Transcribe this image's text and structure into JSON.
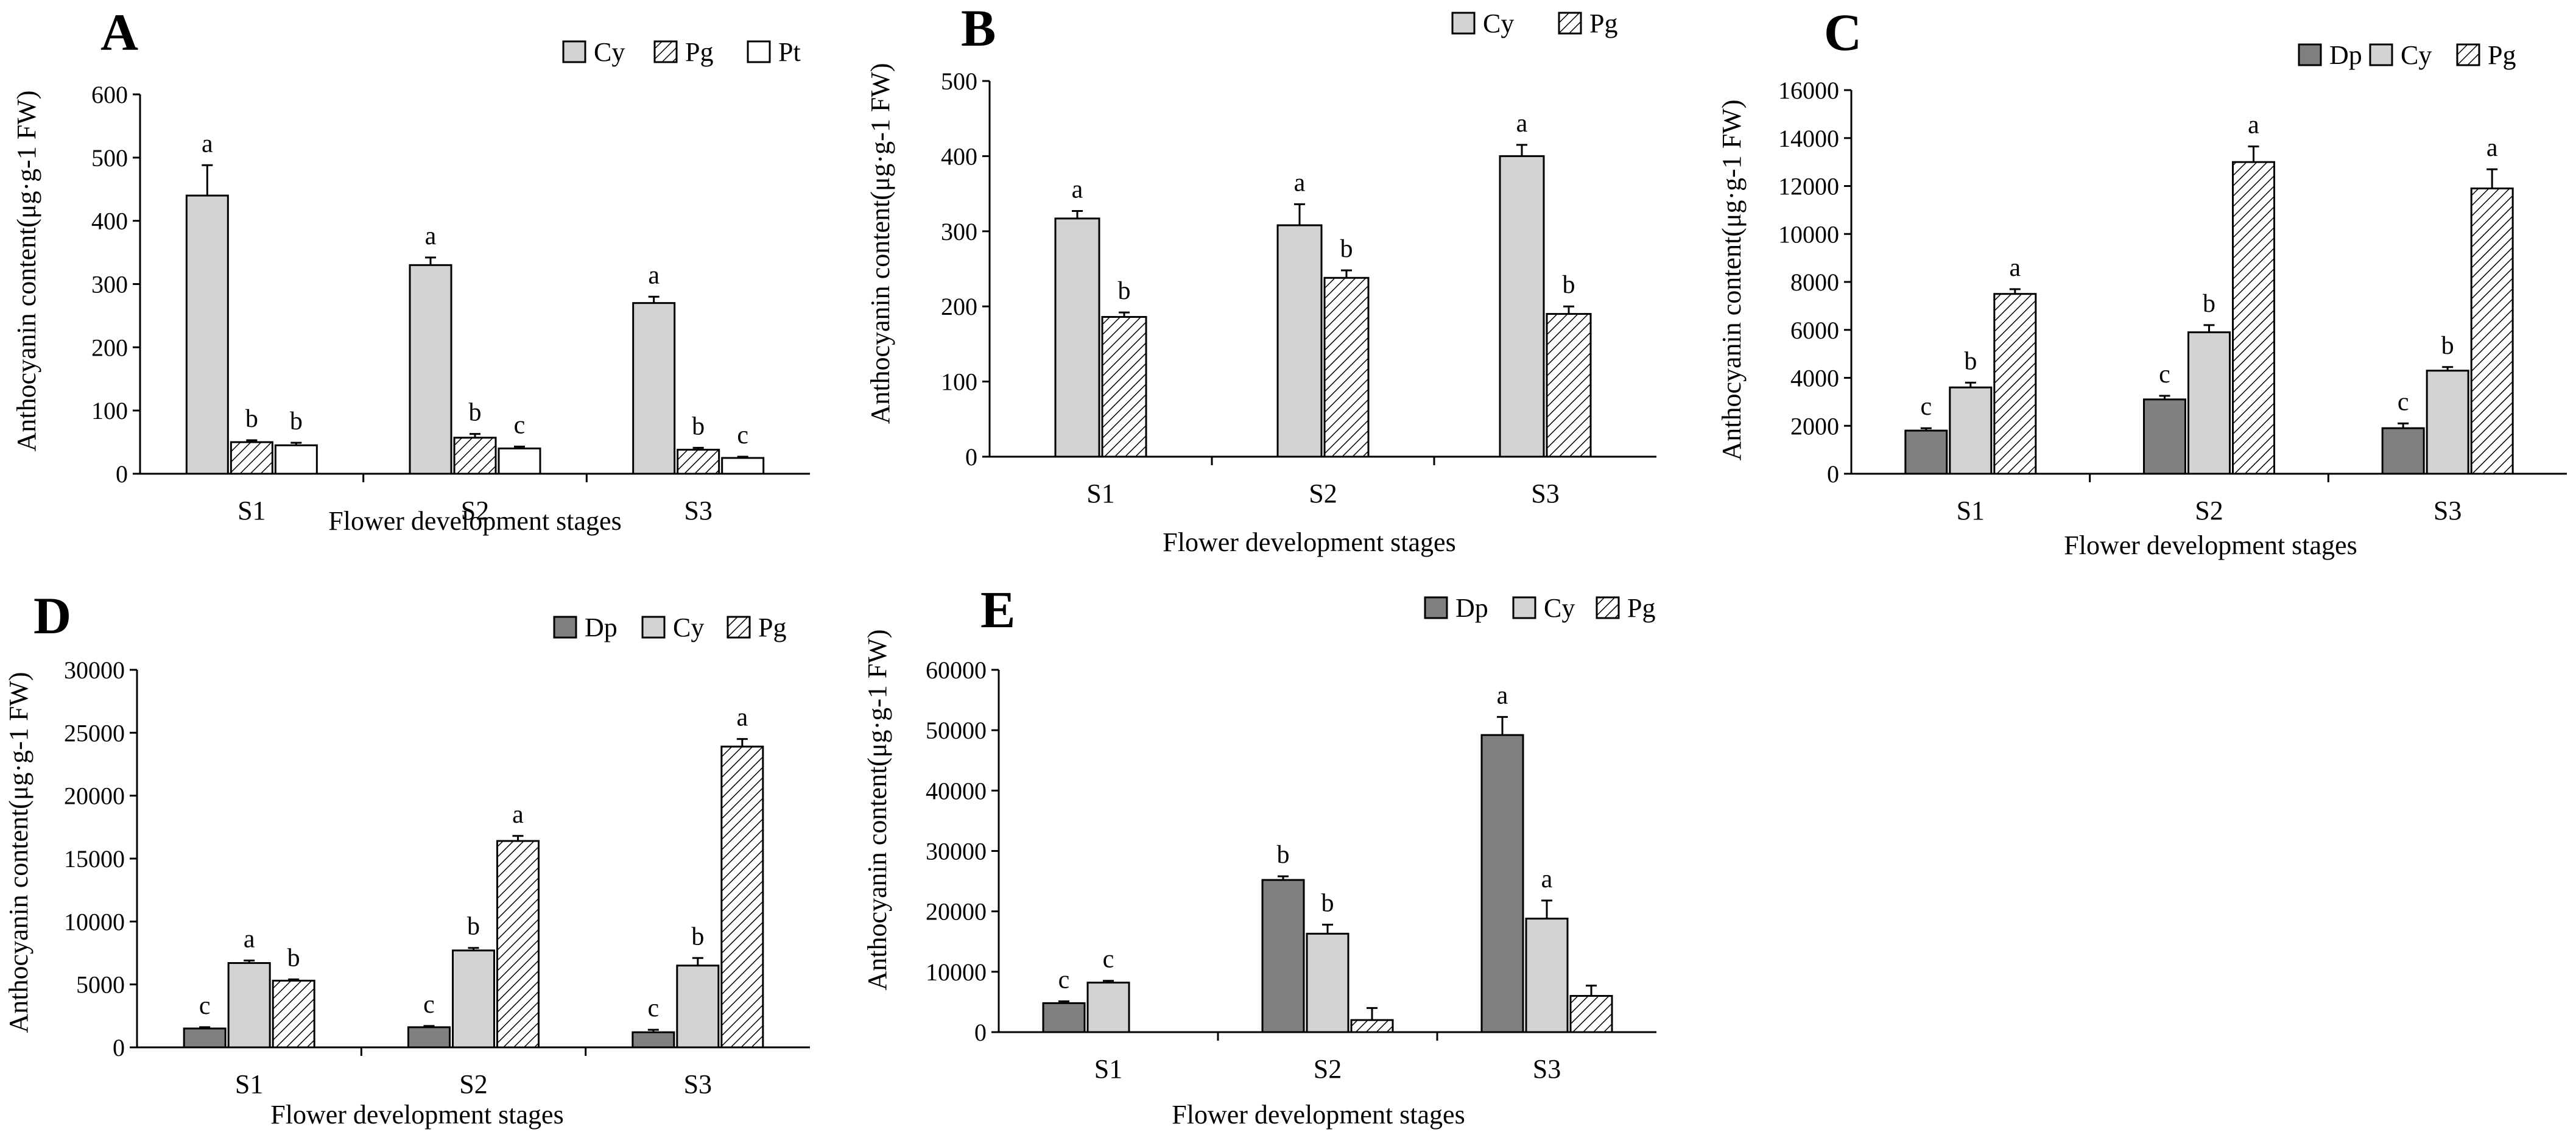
{
  "figure": {
    "ylabel_short": "Anthocyanin content(μg·g-1 FW)"
  },
  "chart_data": [
    {
      "panel": "A",
      "type": "bar",
      "categories": [
        "S1",
        "S2",
        "S3"
      ],
      "xlabel": "Flower development stages",
      "ylabel": "Anthocyanin content(μg·g⁻¹ FW)",
      "ylim": [
        0,
        600
      ],
      "yticks": [
        "0",
        "100",
        "200",
        "300",
        "400",
        "500",
        "600"
      ],
      "series": [
        {
          "name": "Cy",
          "values": [
            440,
            330,
            270
          ],
          "errors": [
            48,
            12,
            10
          ],
          "letters": [
            "a",
            "a",
            "a"
          ]
        },
        {
          "name": "Pg",
          "values": [
            50,
            57,
            38
          ],
          "errors": [
            3,
            6,
            3
          ],
          "letters": [
            "b",
            "b",
            "b"
          ]
        },
        {
          "name": "Pt",
          "values": [
            45,
            40,
            25
          ],
          "errors": [
            4,
            3,
            2
          ],
          "letters": [
            "b",
            "c",
            "c"
          ]
        }
      ]
    },
    {
      "panel": "B",
      "type": "bar",
      "categories": [
        "S1",
        "S2",
        "S3"
      ],
      "xlabel": "Flower development stages",
      "ylabel": "Anthocyanin content(μg·g-1 FW)",
      "ylim": [
        0,
        500
      ],
      "yticks": [
        "0",
        "100",
        "200",
        "300",
        "400",
        "500"
      ],
      "series": [
        {
          "name": "Cy",
          "values": [
            317,
            308,
            400
          ],
          "errors": [
            10,
            28,
            15
          ],
          "letters": [
            "a",
            "a",
            "a"
          ]
        },
        {
          "name": "Pg",
          "values": [
            186,
            238,
            190
          ],
          "errors": [
            6,
            10,
            10
          ],
          "letters": [
            "b",
            "b",
            "b"
          ]
        }
      ]
    },
    {
      "panel": "C",
      "type": "bar",
      "categories": [
        "S1",
        "S2",
        "S3"
      ],
      "xlabel": "Flower development stages",
      "ylabel": "Anthocyanin content(μg·g-1 FW)",
      "ylim": [
        0,
        16000
      ],
      "yticks": [
        "0",
        "2000",
        "4000",
        "6000",
        "8000",
        "10000",
        "12000",
        "14000",
        "16000"
      ],
      "series": [
        {
          "name": "Dp",
          "values": [
            1800,
            3100,
            1900
          ],
          "errors": [
            100,
            150,
            200
          ],
          "letters": [
            "c",
            "c",
            "c"
          ]
        },
        {
          "name": "Cy",
          "values": [
            3600,
            5900,
            4300
          ],
          "errors": [
            200,
            300,
            150
          ],
          "letters": [
            "b",
            "b",
            "b"
          ]
        },
        {
          "name": "Pg",
          "values": [
            7500,
            13000,
            11900
          ],
          "errors": [
            200,
            650,
            800
          ],
          "letters": [
            "a",
            "a",
            "a"
          ]
        }
      ]
    },
    {
      "panel": "D",
      "type": "bar",
      "categories": [
        "S1",
        "S2",
        "S3"
      ],
      "xlabel": "Flower development stages",
      "ylabel": "Anthocyanin content(μg·g-1 FW)",
      "ylim": [
        0,
        30000
      ],
      "yticks": [
        "0",
        "5000",
        "10000",
        "15000",
        "20000",
        "25000",
        "30000"
      ],
      "series": [
        {
          "name": "Dp",
          "values": [
            1500,
            1600,
            1200
          ],
          "errors": [
            100,
            100,
            200
          ],
          "letters": [
            "c",
            "c",
            "c"
          ]
        },
        {
          "name": "Cy",
          "values": [
            6700,
            7700,
            6500
          ],
          "errors": [
            200,
            200,
            600
          ],
          "letters": [
            "a",
            "b",
            "b"
          ]
        },
        {
          "name": "Pg",
          "values": [
            5300,
            16400,
            23900
          ],
          "errors": [
            100,
            400,
            600
          ],
          "letters": [
            "b",
            "a",
            "a"
          ]
        }
      ]
    },
    {
      "panel": "E",
      "type": "bar",
      "categories": [
        "S1",
        "S2",
        "S3"
      ],
      "xlabel": "Flower development stages",
      "ylabel": "Anthocyanin content(μg·g-1 FW)",
      "ylim": [
        0,
        60000
      ],
      "yticks": [
        "0",
        "10000",
        "20000",
        "30000",
        "40000",
        "50000",
        "60000"
      ],
      "series": [
        {
          "name": "Dp",
          "values": [
            4800,
            25200,
            49200
          ],
          "errors": [
            300,
            600,
            3000
          ],
          "letters": [
            "c",
            "b",
            "a"
          ]
        },
        {
          "name": "Cy",
          "values": [
            8200,
            16300,
            18800
          ],
          "errors": [
            300,
            1500,
            3000
          ],
          "letters": [
            "c",
            "b",
            "a"
          ]
        },
        {
          "name": "Pg",
          "values": [
            0,
            2000,
            6000
          ],
          "errors": [
            0,
            2000,
            1700
          ],
          "letters": [
            "",
            "",
            ""
          ]
        }
      ]
    }
  ],
  "colors": {
    "Dp": "#808080",
    "Cy": "#d3d3d3",
    "Pg": "#ffffff",
    "Pt": "#ffffff",
    "stroke": "#000000"
  }
}
